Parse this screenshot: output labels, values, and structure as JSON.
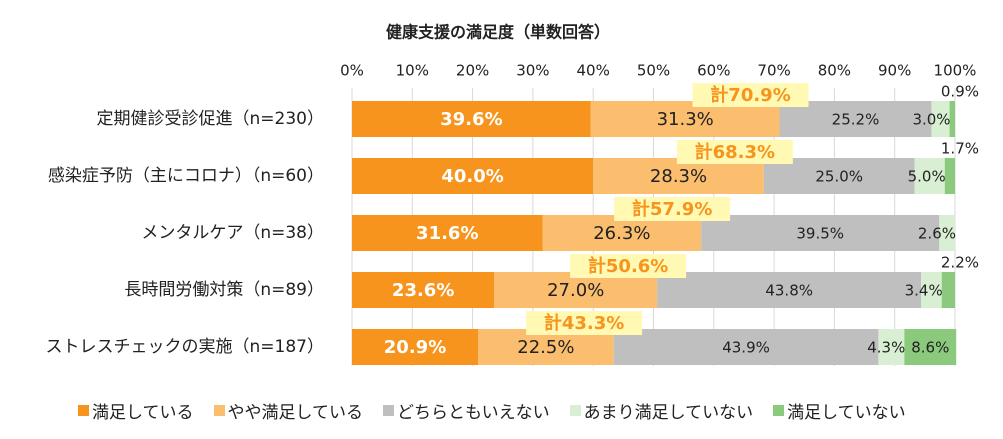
{
  "chart_data": {
    "type": "bar",
    "orientation": "horizontal",
    "stacked": true,
    "title": "健康支援の満足度（単数回答）",
    "xlabel": "",
    "ylabel": "",
    "xlim": [
      0,
      100
    ],
    "x_ticks": [
      "0%",
      "10%",
      "20%",
      "30%",
      "40%",
      "50%",
      "60%",
      "70%",
      "80%",
      "90%",
      "100%"
    ],
    "categories": [
      "定期健診受診促進（n=230）",
      "感染症予防（主にコロナ）（n=60）",
      "メンタルケア（n=38）",
      "長時間労働対策（n=89）",
      "ストレスチェックの実施（n=187）"
    ],
    "series": [
      {
        "name": "満足している",
        "color": "#F7941D",
        "values": [
          39.6,
          40.0,
          31.6,
          23.6,
          20.9
        ],
        "labels": [
          "39.6%",
          "40.0%",
          "31.6%",
          "23.6%",
          "20.9%"
        ]
      },
      {
        "name": "やや満足している",
        "color": "#FBBD6E",
        "values": [
          31.3,
          28.3,
          26.3,
          27.0,
          22.5
        ],
        "labels": [
          "31.3%",
          "28.3%",
          "26.3%",
          "27.0%",
          "22.5%"
        ]
      },
      {
        "name": "どちらともいえない",
        "color": "#BFBFBF",
        "values": [
          25.2,
          25.0,
          39.5,
          43.8,
          43.9
        ],
        "labels": [
          "25.2%",
          "25.0%",
          "39.5%",
          "43.8%",
          "43.9%"
        ]
      },
      {
        "name": "あまり満足していない",
        "color": "#D9EFD3",
        "values": [
          3.0,
          5.0,
          2.6,
          3.4,
          4.3
        ],
        "labels": [
          "3.0%",
          "5.0%",
          "2.6%",
          "3.4%",
          "4.3%"
        ]
      },
      {
        "name": "満足していない",
        "color": "#8BC97C",
        "values": [
          0.9,
          1.7,
          0.0,
          2.2,
          8.6
        ],
        "labels": [
          "0.9%",
          "1.7%",
          "",
          "2.2%",
          "8.6%"
        ]
      }
    ],
    "totals": [
      {
        "label": "計70.9%",
        "value": 70.9
      },
      {
        "label": "計68.3%",
        "value": 68.3
      },
      {
        "label": "計57.9%",
        "value": 57.9
      },
      {
        "label": "計50.6%",
        "value": 50.6
      },
      {
        "label": "計43.3%",
        "value": 43.3
      }
    ],
    "total_label_color": "#F7941D",
    "total_box_color": "#FFF9B3",
    "legend_position": "bottom"
  }
}
